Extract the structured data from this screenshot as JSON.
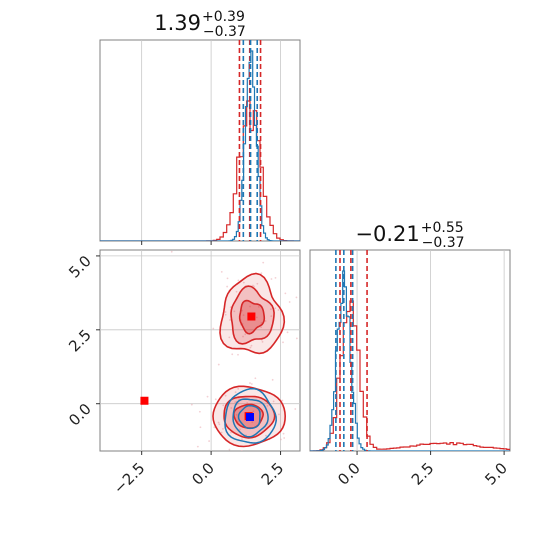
{
  "chart_data": {
    "type": "corner",
    "colors": {
      "series_a": "#d62728",
      "series_b": "#1f77b4"
    },
    "grid": true,
    "parameters": [
      {
        "title_value": "1.39",
        "title_plus": "+0.39",
        "title_minus": "−0.37",
        "range": [
          -4.0,
          3.2
        ],
        "ticks": [
          -2.5,
          0.0,
          2.5
        ],
        "tick_labels": [
          "−2.5",
          "0.0",
          "2.5"
        ],
        "quantiles_a": [
          1.02,
          1.39,
          1.78
        ],
        "quantiles_b": [
          1.16,
          1.42,
          1.66
        ]
      },
      {
        "title_value": "−0.21",
        "title_plus": "+0.55",
        "title_minus": "−0.37",
        "range": [
          -1.6,
          5.2
        ],
        "ticks": [
          0.0,
          2.5,
          5.0
        ],
        "tick_labels": [
          "0.0",
          "2.5",
          "5.0"
        ],
        "quantiles_a": [
          -0.58,
          -0.21,
          0.34
        ],
        "quantiles_b": [
          -0.72,
          -0.45,
          -0.15
        ]
      }
    ],
    "markers": [
      {
        "series": "series_a",
        "x": -2.4,
        "y": 0.1
      },
      {
        "series": "series_a",
        "x": 1.45,
        "y": 2.95
      },
      {
        "series": "series_a",
        "x": 1.35,
        "y": -0.42
      },
      {
        "series": "series_b",
        "x": 1.4,
        "y": -0.45
      }
    ],
    "modes_a": [
      {
        "x": 1.45,
        "y": 2.95,
        "sx": 0.55,
        "sy": 0.65
      },
      {
        "x": 1.35,
        "y": -0.42,
        "sx": 0.65,
        "sy": 0.5
      }
    ],
    "mode_b": {
      "x": 1.4,
      "y": -0.45,
      "sx": 0.35,
      "sy": 0.35
    }
  }
}
